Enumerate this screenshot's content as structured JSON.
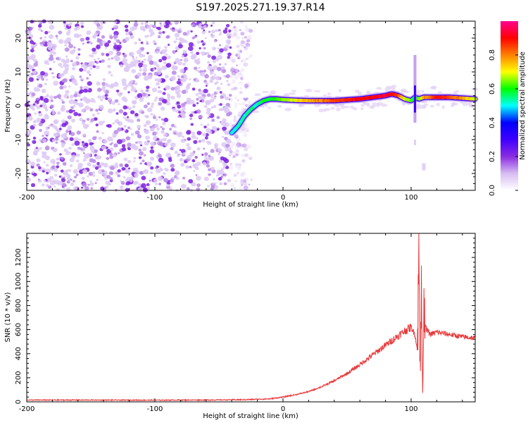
{
  "title": "S197.2025.271.19.37.R14",
  "chart_data": [
    {
      "type": "heatmap",
      "xlabel": "Height of straight line (km)",
      "ylabel": "Frequency (Hz)",
      "xlim": [
        -200,
        150
      ],
      "ylim": [
        -25,
        25
      ],
      "xticks": [
        -200,
        -100,
        0,
        100
      ],
      "yticks": [
        -20,
        -10,
        0,
        10,
        20
      ],
      "colorbar": {
        "label": "Normalized spectral amplitude",
        "range": [
          0,
          1
        ],
        "ticks": [
          "0.0",
          "0.2",
          "0.4",
          "0.6",
          "0.8"
        ],
        "colors": [
          "#ffffff",
          "#d7bdf2",
          "#8a2be2",
          "#3f00ff",
          "#0000ff",
          "#00ffff",
          "#00ff00",
          "#ffff00",
          "#ff8000",
          "#ff0000",
          "#ff0090"
        ]
      },
      "noise_region_x": [
        -200,
        -30
      ],
      "carrier_track": {
        "x": [
          -40,
          -35,
          -30,
          -25,
          -20,
          -15,
          -10,
          -5,
          0,
          10,
          20,
          40,
          60,
          70,
          80,
          85,
          90,
          95,
          100,
          103,
          106,
          110,
          120,
          130,
          150
        ],
        "frequency": [
          -8,
          -6,
          -3,
          -1,
          0.5,
          1.5,
          2,
          2,
          1.8,
          1.6,
          1.5,
          1.5,
          2,
          2.5,
          3,
          3.5,
          3,
          2,
          1.5,
          2.5,
          2,
          2.5,
          2.5,
          2.5,
          2
        ],
        "amplitude": [
          0.25,
          0.3,
          0.3,
          0.35,
          0.3,
          0.4,
          0.4,
          0.45,
          0.5,
          0.6,
          0.7,
          0.85,
          0.9,
          0.9,
          0.95,
          0.9,
          0.85,
          0.6,
          0.5,
          0.35,
          0.5,
          0.7,
          0.9,
          0.85,
          0.6
        ]
      },
      "spike_x": 103
    },
    {
      "type": "line",
      "xlabel": "Height of straight line (km)",
      "ylabel": "SNR (10 * v/v)",
      "xlim": [
        -200,
        150
      ],
      "ylim": [
        0,
        1400
      ],
      "xticks": [
        -200,
        -100,
        0,
        100
      ],
      "yticks": [
        0,
        200,
        400,
        600,
        800,
        1000,
        1200
      ],
      "series": [
        {
          "name": "SNR",
          "color": "#e8383a",
          "x": [
            -200,
            -150,
            -100,
            -50,
            -30,
            -10,
            0,
            10,
            20,
            30,
            40,
            50,
            60,
            70,
            80,
            90,
            95,
            100,
            103,
            105,
            106,
            107,
            108,
            109,
            110,
            112,
            115,
            120,
            130,
            140,
            150
          ],
          "y": [
            15,
            15,
            14,
            16,
            18,
            25,
            40,
            60,
            85,
            125,
            175,
            235,
            310,
            390,
            470,
            550,
            590,
            620,
            560,
            420,
            1400,
            150,
            900,
            80,
            700,
            600,
            560,
            580,
            560,
            540,
            530
          ]
        }
      ]
    }
  ]
}
